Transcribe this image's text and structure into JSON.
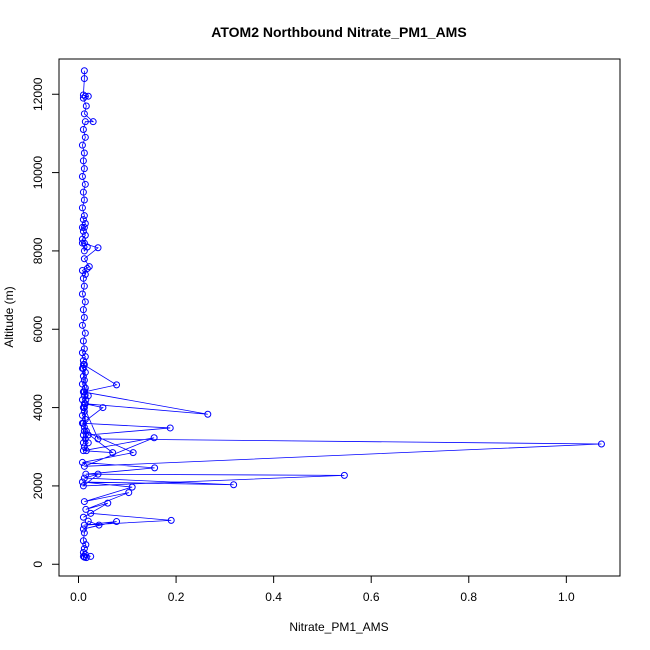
{
  "chart_data": {
    "type": "line",
    "title": "ATOM2 Northbound Nitrate_PM1_AMS",
    "xlabel": "Nitrate_PM1_AMS",
    "ylabel": "Altitude (m)",
    "xlim": [
      -0.04,
      1.11
    ],
    "ylim": [
      -300,
      12900
    ],
    "x_ticks": [
      0.0,
      0.2,
      0.4,
      0.6,
      0.8,
      1.0
    ],
    "x_tick_labels": [
      "0.0",
      "0.2",
      "0.4",
      "0.6",
      "0.8",
      "1.0"
    ],
    "y_ticks": [
      0,
      2000,
      4000,
      6000,
      8000,
      10000,
      12000
    ],
    "y_tick_labels": [
      "0",
      "2000",
      "4000",
      "6000",
      "8000",
      "10000",
      "12000"
    ],
    "grid": false,
    "color": "#0000ff",
    "marker": "open-circle",
    "series": [
      {
        "x": [
          0.012,
          0.012,
          0.01,
          0.014,
          0.02,
          0.01,
          0.016,
          0.012,
          0.03,
          0.014,
          0.01,
          0.014,
          0.008,
          0.012,
          0.01,
          0.012,
          0.008,
          0.014,
          0.01,
          0.012,
          0.008,
          0.012,
          0.01,
          0.014,
          0.008,
          0.012,
          0.01,
          0.014,
          0.008,
          0.012,
          0.018,
          0.012,
          0.008,
          0.04,
          0.012,
          0.022,
          0.008,
          0.014,
          0.018,
          0.01,
          0.012,
          0.008,
          0.014,
          0.01,
          0.012,
          0.008,
          0.014,
          0.01,
          0.012,
          0.008,
          0.014,
          0.01,
          0.012,
          0.008,
          0.014,
          0.01,
          0.012,
          0.008,
          0.014,
          0.01,
          0.012,
          0.008,
          0.014,
          0.01,
          0.012,
          0.008,
          0.014,
          0.01,
          0.012,
          0.016,
          0.01,
          0.014,
          0.02,
          0.012,
          0.016,
          0.01,
          0.078,
          0.012,
          0.01,
          0.02,
          0.015,
          0.01,
          0.265,
          0.012,
          0.05,
          0.008,
          0.188,
          0.02,
          0.01,
          0.012,
          0.04,
          1.072,
          0.012,
          0.155,
          0.01,
          0.07,
          0.012,
          0.112,
          0.008,
          0.156,
          0.015,
          0.545,
          0.01,
          0.04,
          0.012,
          0.318,
          0.008,
          0.11,
          0.012,
          0.103,
          0.015,
          0.06,
          0.01,
          0.025,
          0.19,
          0.012,
          0.078,
          0.01,
          0.042,
          0.02,
          0.012,
          0.01,
          0.015,
          0.012,
          0.01,
          0.025,
          0.014,
          0.012,
          0.01,
          0.016,
          0.012
        ],
        "y": [
          12600,
          12400,
          11980,
          11950,
          11950,
          11900,
          11700,
          11500,
          11300,
          11300,
          11100,
          10900,
          10700,
          10500,
          10300,
          10100,
          9900,
          9700,
          9500,
          9300,
          9100,
          8900,
          8800,
          8700,
          8600,
          8600,
          8500,
          8400,
          8300,
          8200,
          8100,
          8000,
          8200,
          8080,
          7800,
          7600,
          7500,
          7400,
          7550,
          7300,
          7100,
          6900,
          6700,
          6500,
          6300,
          6100,
          5900,
          5700,
          5500,
          5400,
          5300,
          5200,
          5100,
          5000,
          4900,
          4800,
          4700,
          4600,
          4500,
          4400,
          4300,
          4200,
          4100,
          4000,
          3900,
          3800,
          3700,
          3600,
          3500,
          3400,
          3300,
          3200,
          3100,
          3000,
          2900,
          5100,
          4580,
          4400,
          5000,
          4300,
          4200,
          4400,
          3830,
          4100,
          4000,
          3600,
          3480,
          3300,
          3100,
          4000,
          3200,
          3070,
          2500,
          3230,
          2900,
          2850,
          3400,
          2850,
          2600,
          2460,
          2300,
          2270,
          2000,
          2300,
          2200,
          2030,
          2100,
          1970,
          1600,
          1830,
          1400,
          1560,
          1200,
          1300,
          1120,
          1000,
          1090,
          900,
          1000,
          1100,
          800,
          600,
          500,
          400,
          300,
          200,
          250,
          180,
          200,
          170,
          190
        ]
      }
    ]
  }
}
